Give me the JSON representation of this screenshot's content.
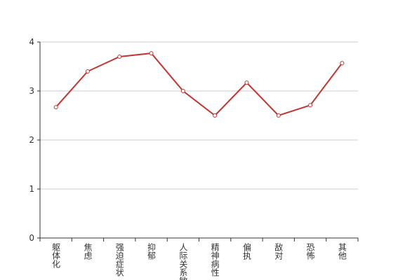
{
  "chart_data": {
    "type": "line",
    "categories": [
      "躯体化",
      "焦虑",
      "强迫症状",
      "抑郁",
      "人际关系敏感",
      "精神病性",
      "偏执",
      "敌对",
      "恐怖",
      "其他"
    ],
    "values": [
      2.67,
      3.4,
      3.7,
      3.77,
      3.0,
      2.5,
      3.17,
      2.5,
      2.71,
      3.57
    ],
    "color": "#c23531",
    "ylim": [
      0,
      4
    ],
    "yticks": [
      0,
      1,
      2,
      3,
      4
    ],
    "grid": true
  }
}
